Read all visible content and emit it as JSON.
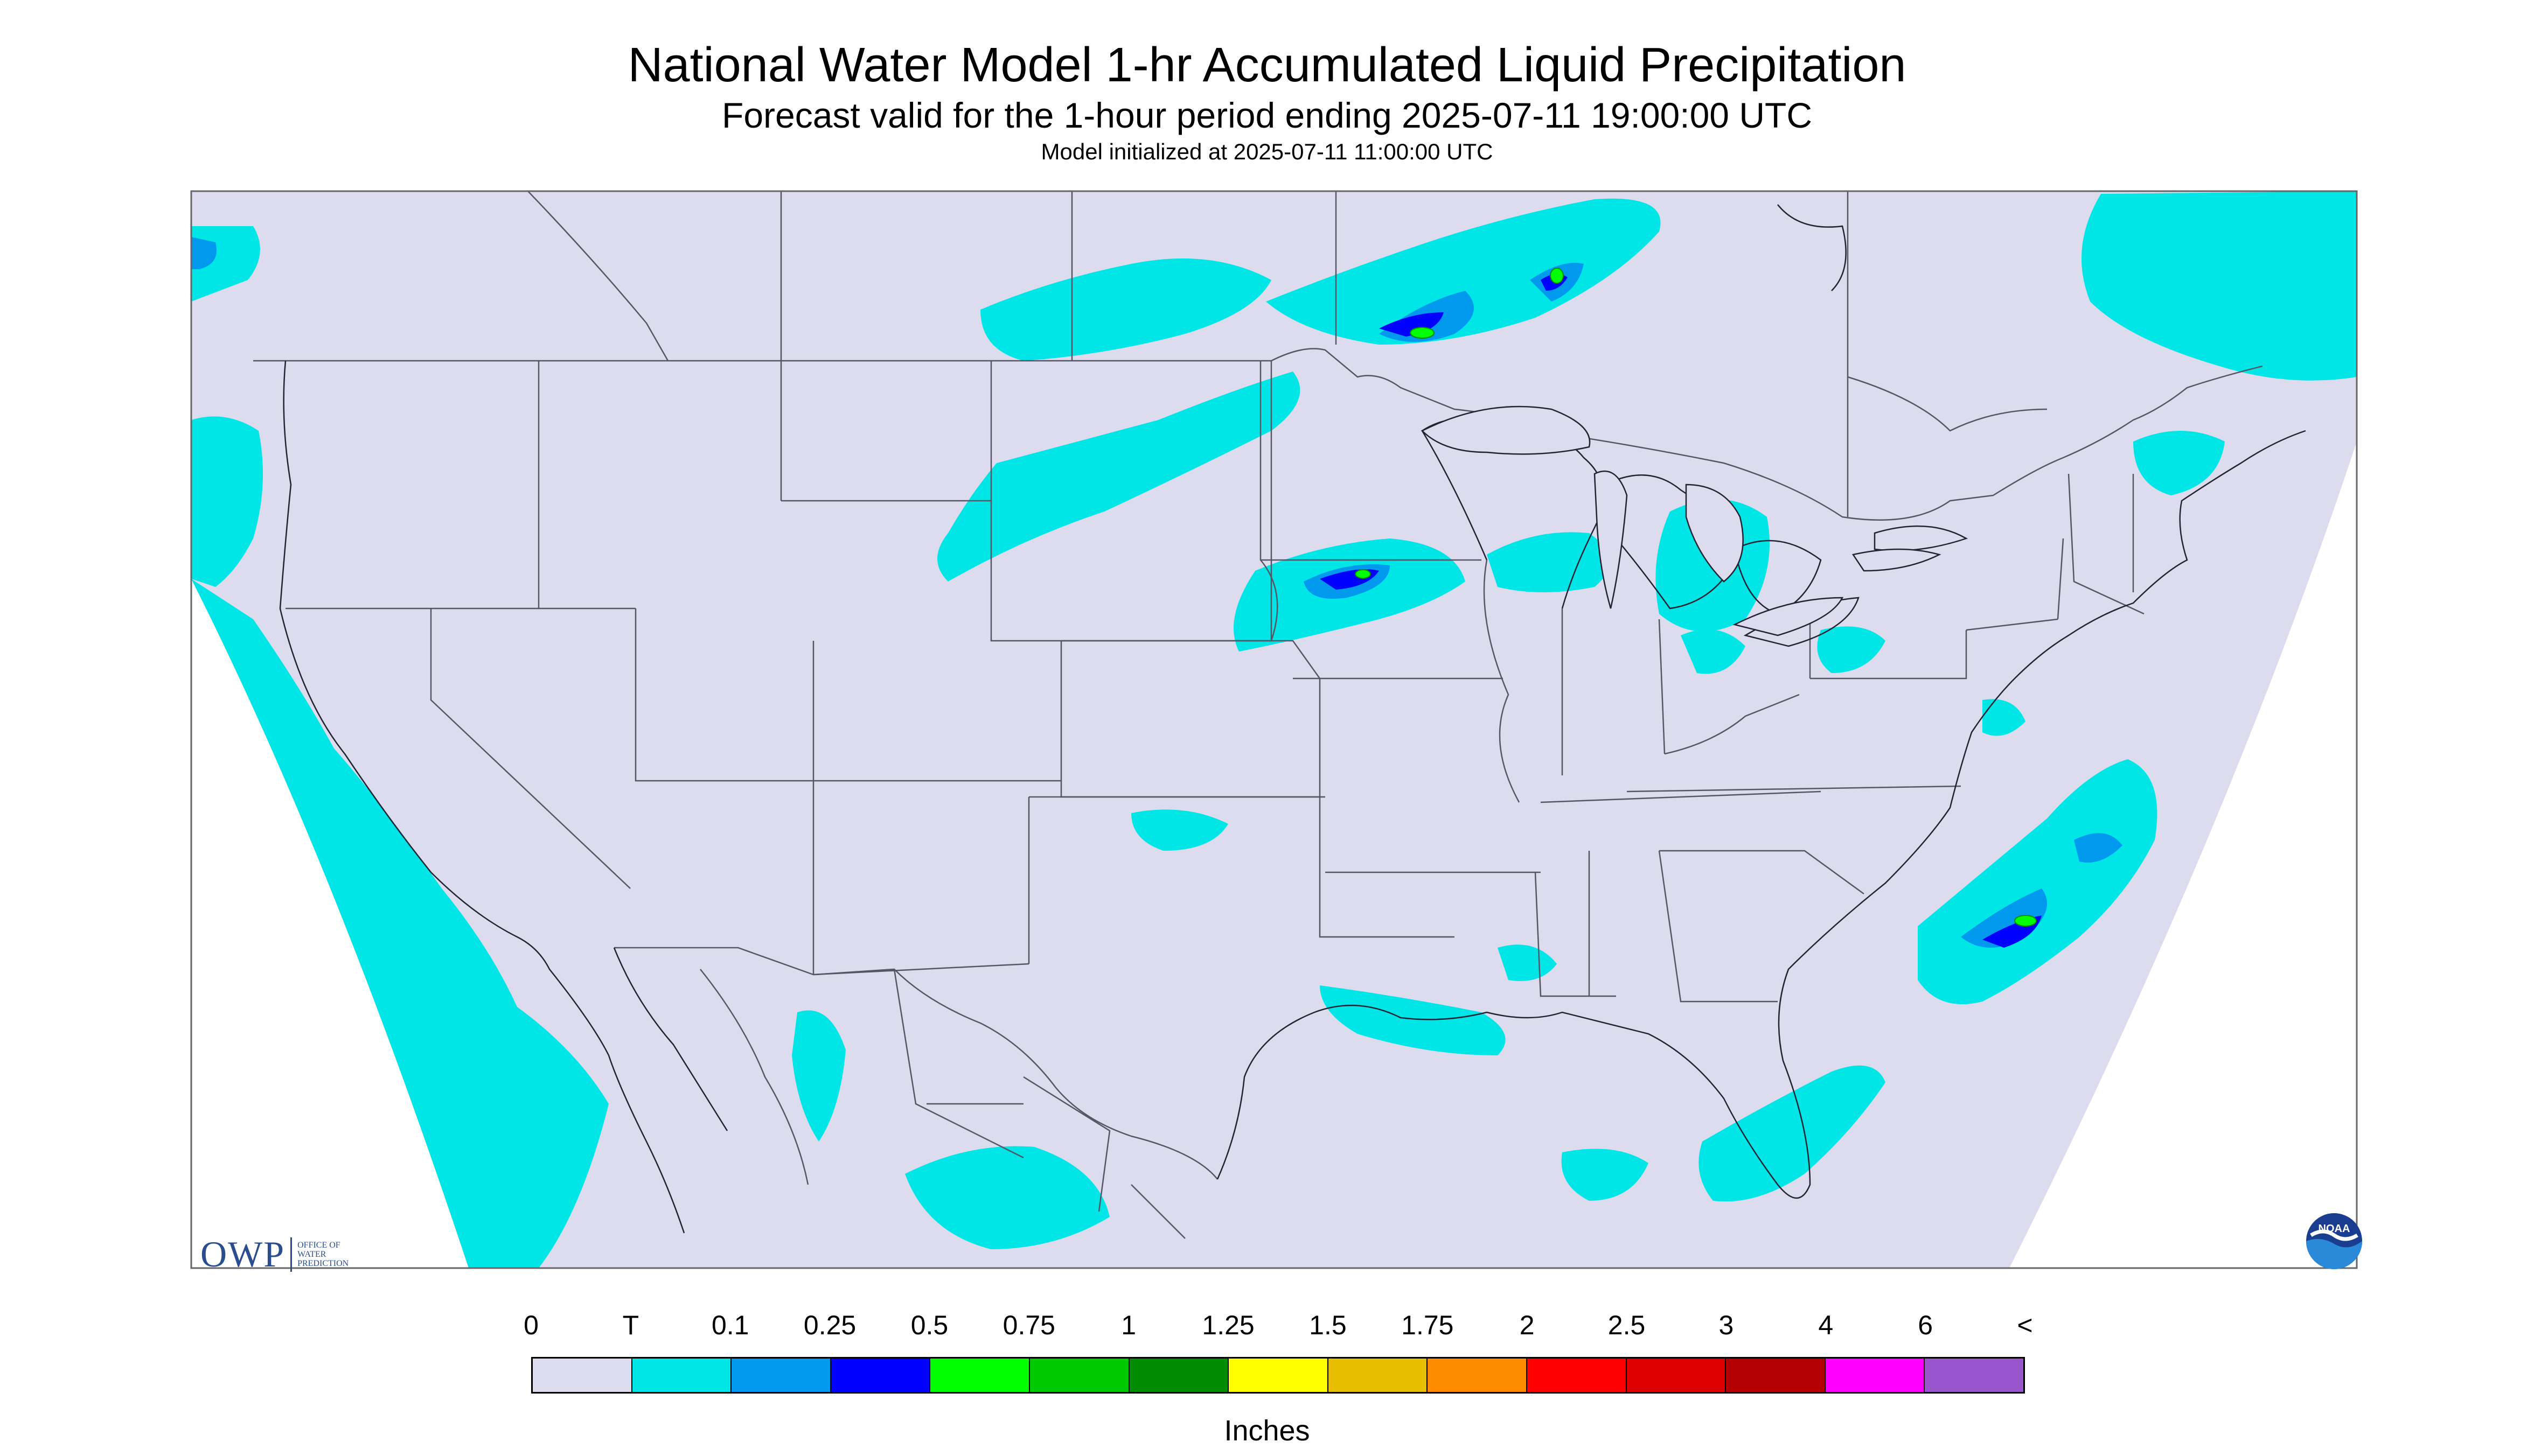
{
  "header": {
    "title": "National Water Model 1-hr Accumulated Liquid Precipitation",
    "subtitle": "Forecast valid for the 1-hour period ending 2025-07-11 19:00:00 UTC",
    "init_line": "Model initialized at 2025-07-11 11:00:00 UTC"
  },
  "legend": {
    "labels": [
      "0",
      "T",
      "0.1",
      "0.25",
      "0.5",
      "0.75",
      "1",
      "1.25",
      "1.5",
      "1.75",
      "2",
      "2.5",
      "3",
      "4",
      "6",
      "<"
    ],
    "colors": [
      "#dcdcee",
      "#00e6e6",
      "#0099ee",
      "#0000ff",
      "#00ff00",
      "#00c800",
      "#008c00",
      "#ffff00",
      "#e6be00",
      "#ff8c00",
      "#ff0000",
      "#dc0000",
      "#b40000",
      "#ff00ff",
      "#9955cc"
    ],
    "units": "Inches"
  },
  "logos": {
    "owp_mark": "OWP",
    "owp_name": "OFFICE OF WATER PREDICTION",
    "noaa": "NOAA"
  },
  "map": {
    "background_color": "#dcdcee",
    "outside_color": "#ffffff",
    "precip_regions": [
      {
        "region": "Pacific Coast (CA/Baja offshore)",
        "max_class": "T"
      },
      {
        "region": "Pacific Northwest coast",
        "max_class": "0.1"
      },
      {
        "region": "Northern Plains (MT/ND/SD)",
        "max_class": "0.1"
      },
      {
        "region": "Southern Canada / Lake Superior",
        "max_class": "0.75"
      },
      {
        "region": "Upper Midwest (MN/WI)",
        "max_class": "0.75"
      },
      {
        "region": "Great Lakes (MI)",
        "max_class": "0.1"
      },
      {
        "region": "New England / Quebec",
        "max_class": "0.1"
      },
      {
        "region": "Western Atlantic off Carolinas",
        "max_class": "0.75"
      },
      {
        "region": "Gulf Coast and Florida",
        "max_class": "0.25"
      },
      {
        "region": "Mexico",
        "max_class": "0.1"
      }
    ]
  }
}
